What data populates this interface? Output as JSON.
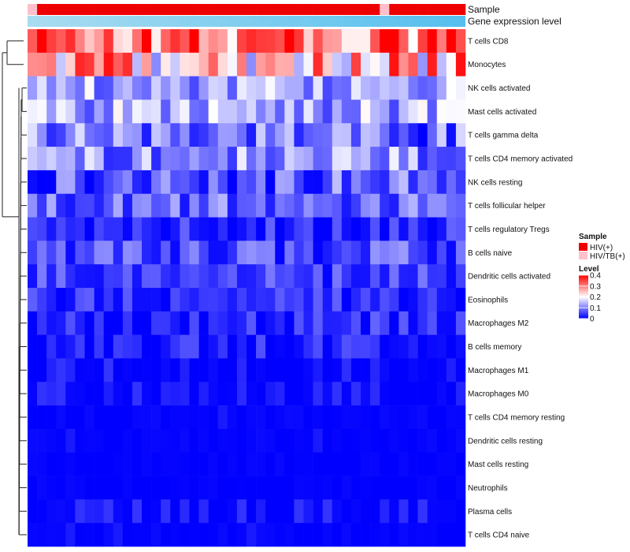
{
  "chart_data": {
    "type": "heatmap",
    "title": "",
    "annotation_tracks": [
      "Sample",
      "Gene expression level"
    ],
    "rows": [
      "T cells CD8",
      "Monocytes",
      "NK cells activated",
      "Mast cells activated",
      "T cells gamma delta",
      "T cells CD4 memory activated",
      "NK cells resting",
      "T cells follicular helper",
      "T cells regulatory  Tregs",
      "B cells naive",
      "Dendritic cells activated",
      "Eosinophils",
      "Macrophages M2",
      "B cells memory",
      "Macrophages M1",
      "Macrophages M0",
      "T cells CD4 memory resting",
      "Dendritic cells resting",
      "Mast cells resting",
      "Neutrophils",
      "Plasma cells",
      "T cells CD4 naive"
    ],
    "n_columns": 46,
    "sample_groups": [
      "HIV/TB(+)",
      "HIV(+)",
      "HIV(+)",
      "HIV(+)",
      "HIV(+)",
      "HIV(+)",
      "HIV(+)",
      "HIV(+)",
      "HIV(+)",
      "HIV(+)",
      "HIV(+)",
      "HIV(+)",
      "HIV(+)",
      "HIV(+)",
      "HIV(+)",
      "HIV(+)",
      "HIV(+)",
      "HIV(+)",
      "HIV(+)",
      "HIV(+)",
      "HIV(+)",
      "HIV(+)",
      "HIV(+)",
      "HIV(+)",
      "HIV(+)",
      "HIV(+)",
      "HIV(+)",
      "HIV(+)",
      "HIV(+)",
      "HIV(+)",
      "HIV(+)",
      "HIV(+)",
      "HIV(+)",
      "HIV(+)",
      "HIV(+)",
      "HIV(+)",
      "HIV(+)",
      "HIV/TB(+)",
      "HIV(+)",
      "HIV(+)",
      "HIV(+)",
      "HIV(+)",
      "HIV(+)",
      "HIV(+)",
      "HIV(+)",
      "HIV(+)"
    ],
    "sample_legend": {
      "title": "Sample",
      "entries": [
        {
          "label": "HIV(+)",
          "color": "#ee0000"
        },
        {
          "label": "HIV/TB(+)",
          "color": "#ffc0cb"
        }
      ]
    },
    "level_legend": {
      "title": "Level",
      "ticks": [
        0,
        0.1,
        0.2,
        0.3,
        0.4
      ],
      "tick_labels": [
        "0",
        "0.1",
        "0.2",
        "0.3",
        "0.4"
      ],
      "range": [
        0,
        0.4
      ],
      "colors": [
        "#0000ff",
        "#ffffff",
        "#ff0000"
      ]
    },
    "gene_expression_gradient": [
      "#aadcf0",
      "#55bfee"
    ],
    "row_profiles": [
      {
        "name": "T cells CD8",
        "mean": 0.32,
        "spread": 0.09
      },
      {
        "name": "Monocytes",
        "mean": 0.25,
        "spread": 0.09
      },
      {
        "name": "NK cells activated",
        "mean": 0.13,
        "spread": 0.05
      },
      {
        "name": "Mast cells activated",
        "mean": 0.13,
        "spread": 0.05
      },
      {
        "name": "T cells gamma delta",
        "mean": 0.09,
        "spread": 0.06
      },
      {
        "name": "T cells CD4 memory activated",
        "mean": 0.11,
        "spread": 0.05
      },
      {
        "name": "NK cells resting",
        "mean": 0.07,
        "spread": 0.05
      },
      {
        "name": "T cells follicular helper",
        "mean": 0.08,
        "spread": 0.04
      },
      {
        "name": "T cells regulatory  Tregs",
        "mean": 0.03,
        "spread": 0.03
      },
      {
        "name": "B cells naive",
        "mean": 0.06,
        "spread": 0.04
      },
      {
        "name": "Dendritic cells activated",
        "mean": 0.05,
        "spread": 0.03
      },
      {
        "name": "Eosinophils",
        "mean": 0.03,
        "spread": 0.03
      },
      {
        "name": "Macrophages M2",
        "mean": 0.03,
        "spread": 0.03
      },
      {
        "name": "B cells memory",
        "mean": 0.02,
        "spread": 0.03
      },
      {
        "name": "Macrophages M1",
        "mean": 0.01,
        "spread": 0.02
      },
      {
        "name": "Macrophages M0",
        "mean": 0.01,
        "spread": 0.02
      },
      {
        "name": "T cells CD4 memory resting",
        "mean": 0.005,
        "spread": 0.01
      },
      {
        "name": "Dendritic cells resting",
        "mean": 0.005,
        "spread": 0.01
      },
      {
        "name": "Mast cells resting",
        "mean": 0.003,
        "spread": 0.008
      },
      {
        "name": "Neutrophils",
        "mean": 0.003,
        "spread": 0.008
      },
      {
        "name": "Plasma cells",
        "mean": 0.01,
        "spread": 0.02
      },
      {
        "name": "T cells CD4 naive",
        "mean": 0.005,
        "spread": 0.01
      }
    ]
  }
}
